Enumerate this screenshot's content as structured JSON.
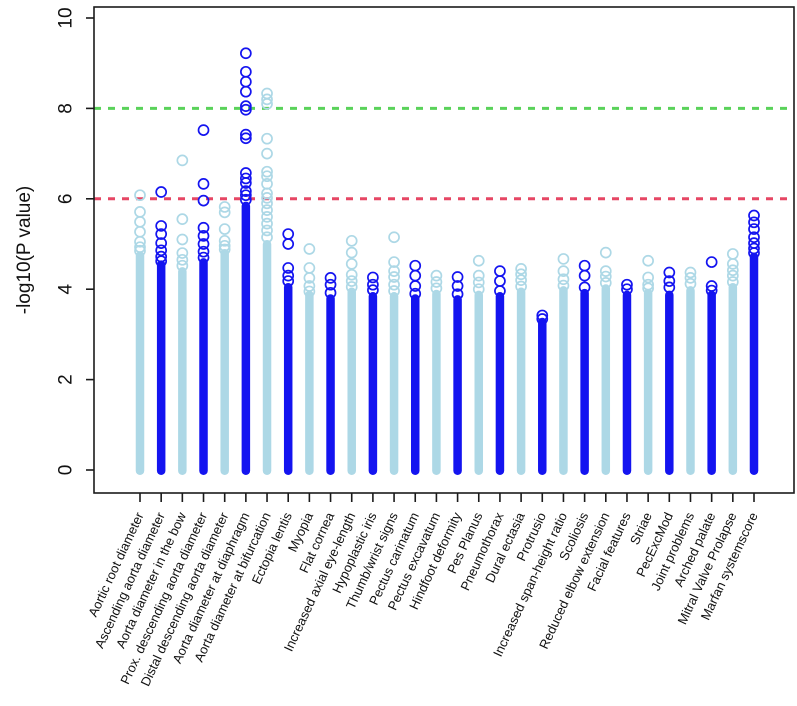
{
  "figure": {
    "background": "#ffffff"
  },
  "chart_data": {
    "type": "scatter",
    "subtype": "phewas-column-manhattan",
    "title": "",
    "xlabel": "",
    "ylabel": "-log10(P value)",
    "ylim": [
      0,
      10.2
    ],
    "yticks": [
      0,
      2,
      4,
      6,
      8,
      10
    ],
    "grid": false,
    "legend": null,
    "point_style": "open-circle",
    "colors": {
      "light": "#add8e6",
      "dark": "#1414f0",
      "axis": "#1a1a1a",
      "background": "#ffffff"
    },
    "thresholds": [
      {
        "value": 8,
        "color": "#5ad25a",
        "style": "dashed"
      },
      {
        "value": 6,
        "color": "#e64664",
        "style": "dashed"
      }
    ],
    "categories": [
      {
        "label": "Aortic root diameter",
        "shade": "light",
        "bar_top": 4.75,
        "rings": [
          6.08,
          5.71,
          5.49,
          5.27,
          5.05,
          4.93,
          4.85
        ]
      },
      {
        "label": "Ascending aorta diameter",
        "shade": "dark",
        "bar_top": 4.55,
        "rings": [
          6.15,
          5.4,
          5.22,
          5.02,
          4.86,
          4.72,
          4.62
        ]
      },
      {
        "label": "Aorta diameter in the bow",
        "shade": "light",
        "bar_top": 4.4,
        "rings": [
          6.85,
          5.55,
          5.1,
          4.8,
          4.65,
          4.52
        ]
      },
      {
        "label": "Prox. descending aorta diameter",
        "shade": "dark",
        "bar_top": 4.6,
        "rings": [
          7.52,
          6.33,
          5.96,
          5.36,
          5.18,
          5.0,
          4.83,
          4.7
        ]
      },
      {
        "label": "Distal descending aorta diameter",
        "shade": "light",
        "bar_top": 4.8,
        "rings": [
          5.82,
          5.7,
          5.33,
          5.07,
          4.96,
          4.88
        ]
      },
      {
        "label": "Aorta diameter at diaphragm",
        "shade": "dark",
        "bar_top": 5.85,
        "rings": [
          9.22,
          8.81,
          8.59,
          8.37,
          8.05,
          7.97,
          7.42,
          7.34,
          6.57,
          6.45,
          6.35,
          6.17,
          6.08,
          5.98
        ]
      },
      {
        "label": "Aorta diameter at bifurcation",
        "shade": "light",
        "bar_top": 5.0,
        "rings": [
          8.33,
          8.2,
          8.1,
          7.33,
          7.0,
          6.6,
          6.5,
          6.33,
          6.12,
          6.02,
          5.9,
          5.75,
          5.6,
          5.45,
          5.3,
          5.15
        ]
      },
      {
        "label": "Ectopia lentis",
        "shade": "dark",
        "bar_top": 4.05,
        "rings": [
          5.22,
          5.0,
          4.47,
          4.3,
          4.18
        ]
      },
      {
        "label": "Myopia",
        "shade": "light",
        "bar_top": 3.88,
        "rings": [
          4.89,
          4.47,
          4.25,
          4.07,
          3.95
        ]
      },
      {
        "label": "Flat cornea",
        "shade": "dark",
        "bar_top": 3.8,
        "rings": [
          4.25,
          4.1,
          3.92
        ]
      },
      {
        "label": "Increased axial eye-length",
        "shade": "light",
        "bar_top": 3.95,
        "rings": [
          5.07,
          4.81,
          4.56,
          4.32,
          4.18,
          4.05
        ]
      },
      {
        "label": "Hypoplastic iris",
        "shade": "dark",
        "bar_top": 3.85,
        "rings": [
          4.26,
          4.1,
          3.98
        ]
      },
      {
        "label": "Thumb/wrist signs",
        "shade": "light",
        "bar_top": 3.85,
        "rings": [
          5.15,
          4.6,
          4.4,
          4.27,
          4.1,
          3.96
        ]
      },
      {
        "label": "Pectus carinatum",
        "shade": "dark",
        "bar_top": 3.8,
        "rings": [
          4.52,
          4.3,
          4.07,
          3.9
        ]
      },
      {
        "label": "Pectus excavatum",
        "shade": "light",
        "bar_top": 3.9,
        "rings": [
          4.3,
          4.16,
          4.02
        ]
      },
      {
        "label": "Hindfoot deformity",
        "shade": "dark",
        "bar_top": 3.78,
        "rings": [
          4.27,
          4.07,
          3.89
        ]
      },
      {
        "label": "Pes Planus",
        "shade": "light",
        "bar_top": 3.88,
        "rings": [
          4.63,
          4.3,
          4.15,
          4.0
        ]
      },
      {
        "label": "Pneumothorax",
        "shade": "dark",
        "bar_top": 3.85,
        "rings": [
          4.4,
          4.18,
          3.96
        ]
      },
      {
        "label": "Dural ectasia",
        "shade": "light",
        "bar_top": 3.95,
        "rings": [
          4.45,
          4.33,
          4.2,
          4.06
        ]
      },
      {
        "label": "Protrusio",
        "shade": "dark",
        "bar_top": 3.28,
        "rings": [
          3.42,
          3.34
        ]
      },
      {
        "label": "Increased span-height ratio",
        "shade": "light",
        "bar_top": 3.98,
        "rings": [
          4.67,
          4.4,
          4.22,
          4.08
        ]
      },
      {
        "label": "Scoliosis",
        "shade": "dark",
        "bar_top": 3.92,
        "rings": [
          4.52,
          4.3,
          4.04
        ]
      },
      {
        "label": "Reduced elbow extension",
        "shade": "light",
        "bar_top": 4.02,
        "rings": [
          4.81,
          4.4,
          4.28,
          4.14
        ]
      },
      {
        "label": "Facial features",
        "shade": "dark",
        "bar_top": 3.88,
        "rings": [
          4.1,
          4.0
        ]
      },
      {
        "label": "Striae",
        "shade": "light",
        "bar_top": 3.92,
        "rings": [
          4.63,
          4.26,
          4.1,
          4.02
        ]
      },
      {
        "label": "PecExcMod",
        "shade": "dark",
        "bar_top": 3.88,
        "rings": [
          4.37,
          4.18,
          4.04
        ]
      },
      {
        "label": "Joint problems",
        "shade": "light",
        "bar_top": 3.98,
        "rings": [
          4.37,
          4.25,
          4.12
        ]
      },
      {
        "label": "Arched palate",
        "shade": "dark",
        "bar_top": 3.88,
        "rings": [
          4.6,
          4.07,
          3.97
        ]
      },
      {
        "label": "Mitral Valve Prolapse",
        "shade": "light",
        "bar_top": 4.05,
        "rings": [
          4.78,
          4.56,
          4.42,
          4.3,
          4.16
        ]
      },
      {
        "label": "Marfan systemscore",
        "shade": "dark",
        "bar_top": 4.72,
        "rings": [
          5.63,
          5.48,
          5.33,
          5.15,
          5.02,
          4.9,
          4.8
        ]
      }
    ]
  }
}
